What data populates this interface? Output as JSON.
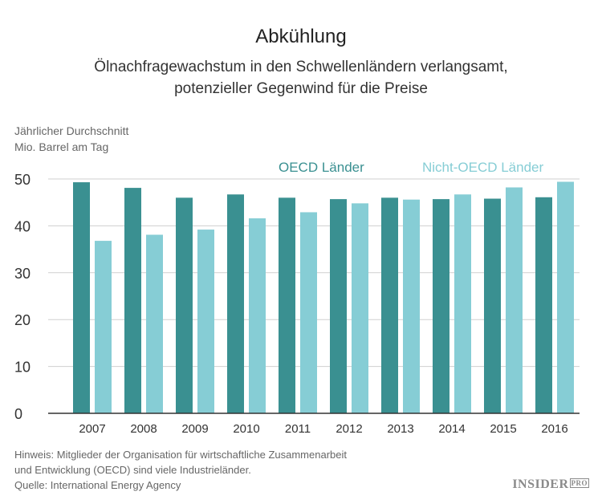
{
  "title": "Abkühlung",
  "subtitle_line1": "Ölnachfragewachstum in den Schwellenländern verlangsamt,",
  "subtitle_line2": "potenzieller Gegenwind für die Preise",
  "unit_line1": "Jährlicher Durchschnitt",
  "unit_line2": "Mio. Barrel am Tag",
  "note_line1": "Hinweis: Mitglieder der Organisation für wirtschaftliche Zusammenarbeit",
  "note_line2": "und Entwicklung (OECD) sind viele Industrieländer.",
  "source": "Quelle: International Energy Agency",
  "logo_text": "INSIDER",
  "logo_badge": "PRO",
  "colors": {
    "oecd": "#3a9091",
    "non_oecd": "#86cdd5",
    "grid": "#cfcfcf",
    "axis": "#333333"
  },
  "chart_data": {
    "type": "bar",
    "categories": [
      "2007",
      "2008",
      "2009",
      "2010",
      "2011",
      "2012",
      "2013",
      "2014",
      "2015",
      "2016"
    ],
    "series": [
      {
        "name": "OECD Länder",
        "values": [
          49.3,
          48.1,
          46.0,
          46.7,
          46.0,
          45.7,
          46.0,
          45.7,
          45.8,
          46.1
        ]
      },
      {
        "name": "Nicht-OECD Länder",
        "values": [
          36.8,
          38.1,
          39.2,
          41.6,
          42.9,
          44.8,
          45.6,
          46.7,
          48.2,
          49.4
        ]
      }
    ],
    "yticks": [
      0,
      10,
      20,
      30,
      40,
      50
    ],
    "ylim": [
      0,
      50
    ],
    "grid": true,
    "legend": "top-right"
  }
}
